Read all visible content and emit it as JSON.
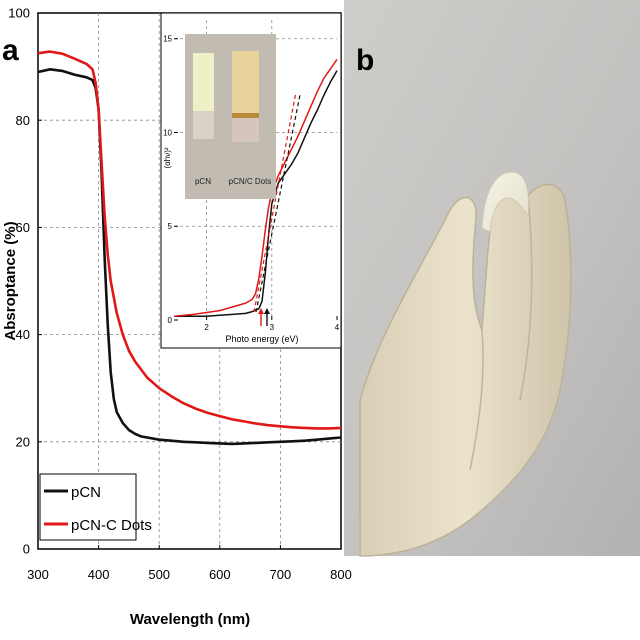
{
  "panel_labels": {
    "a": "a",
    "b": "b"
  },
  "colors": {
    "pcn": "#111111",
    "pcn_c_dots": "#e01818",
    "grid": "#8a8a8a"
  },
  "chart_data": [
    {
      "type": "line",
      "xlabel": "Wavelength (nm)",
      "ylabel": "Absroptance (%)",
      "xlim": [
        300,
        800
      ],
      "ylim": [
        0,
        100
      ],
      "x_ticks": [
        300,
        400,
        500,
        600,
        700,
        800
      ],
      "y_ticks": [
        0,
        20,
        40,
        60,
        80,
        100
      ],
      "grid": true,
      "legend_position": "bottom-left",
      "series": [
        {
          "name": "pCN",
          "color": "#111111",
          "x": [
            300,
            320,
            340,
            360,
            380,
            390,
            395,
            400,
            405,
            410,
            415,
            420,
            425,
            430,
            440,
            450,
            460,
            470,
            480,
            500,
            520,
            540,
            560,
            580,
            600,
            620,
            640,
            660,
            680,
            700,
            720,
            740,
            760,
            780,
            800
          ],
          "y": [
            89,
            89.5,
            89.2,
            88.5,
            88,
            87.5,
            86,
            82,
            70,
            54,
            42,
            33,
            28,
            25.5,
            23.5,
            22.2,
            21.5,
            21,
            20.8,
            20.4,
            20.2,
            20,
            19.9,
            19.8,
            19.7,
            19.6,
            19.7,
            19.8,
            19.9,
            20,
            20.1,
            20.2,
            20.4,
            20.6,
            20.8
          ]
        },
        {
          "name": "pCN-C Dots",
          "color": "#e01818",
          "x": [
            300,
            320,
            340,
            360,
            380,
            390,
            395,
            400,
            405,
            410,
            415,
            420,
            430,
            440,
            450,
            460,
            470,
            480,
            500,
            520,
            540,
            560,
            580,
            600,
            620,
            640,
            660,
            680,
            700,
            720,
            740,
            760,
            780,
            800
          ],
          "y": [
            92.5,
            92.8,
            92.4,
            91.5,
            90.5,
            89.5,
            87,
            82,
            72,
            62,
            55,
            50,
            44,
            40,
            37,
            35,
            33.5,
            32,
            30,
            28.5,
            27.2,
            26.2,
            25.4,
            24.8,
            24.2,
            23.8,
            23.4,
            23.1,
            22.9,
            22.7,
            22.6,
            22.5,
            22.5,
            22.6
          ]
        }
      ]
    },
    {
      "type": "line",
      "title": "",
      "xlabel": "Photo energy (eV)",
      "ylabel": "(αhν)²",
      "xlim": [
        1.5,
        4
      ],
      "ylim": [
        0,
        16
      ],
      "x_ticks": [
        2,
        3,
        4
      ],
      "y_ticks": [
        0,
        5,
        10,
        15
      ],
      "grid": true,
      "series": [
        {
          "color": "#111111",
          "x": [
            1.5,
            1.8,
            2.0,
            2.2,
            2.4,
            2.6,
            2.7,
            2.8,
            2.85,
            2.9,
            2.95,
            3.0,
            3.1,
            3.2,
            3.3,
            3.4,
            3.5,
            3.6,
            3.7,
            3.8,
            3.9,
            4.0
          ],
          "y": [
            0.2,
            0.2,
            0.2,
            0.25,
            0.3,
            0.35,
            0.45,
            0.6,
            1.0,
            2.5,
            4.5,
            6.2,
            7.3,
            7.8,
            8.3,
            8.9,
            9.7,
            10.5,
            11.2,
            12.0,
            12.7,
            13.3
          ]
        },
        {
          "color": "#e01818",
          "x": [
            1.5,
            1.8,
            2.0,
            2.2,
            2.4,
            2.6,
            2.7,
            2.75,
            2.8,
            2.85,
            2.9,
            2.95,
            3.0,
            3.1,
            3.2,
            3.3,
            3.4,
            3.5,
            3.6,
            3.7,
            3.8,
            3.9,
            4.0
          ],
          "y": [
            0.2,
            0.3,
            0.4,
            0.5,
            0.7,
            0.9,
            1.1,
            1.4,
            2.2,
            3.4,
            4.8,
            6.0,
            6.8,
            7.7,
            8.4,
            9.1,
            9.8,
            10.6,
            11.4,
            12.2,
            12.9,
            13.4,
            13.9
          ]
        }
      ]
    }
  ],
  "inset_photo": {
    "labels": [
      "pCN",
      "pCN/C Dots"
    ]
  }
}
